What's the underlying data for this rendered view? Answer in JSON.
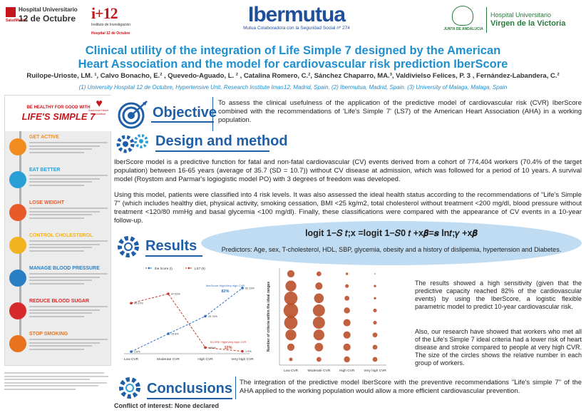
{
  "header": {
    "left_logo_1_line1": "Hospital Universitario",
    "left_logo_1_line2": "12 de Octubre",
    "left_logo_1_sub": "SaludMadrid",
    "left_logo_2_mark": "i+12",
    "left_logo_2_line1": "Instituto de Investigación",
    "left_logo_2_line2": "Hospital 12 de Octubre",
    "center_logo_name": "Ibermutua",
    "center_logo_sub": "Mutua Colaboradora con la Seguridad Social nº 274",
    "right_logo_junta": "JUNTA DE ANDALUCIA",
    "right_logo_line1": "Hospital Universitario",
    "right_logo_line2": "Virgen de la Victoria"
  },
  "poster": {
    "title_line1": "Clinical utility of the integration of Life Simple 7 designed by the American",
    "title_line2": "Heart Association and the model for cardiovascular risk prediction IberScore",
    "authors": "Ruilope-Urioste, LM. ¹, Calvo Bonacho, E.² , Quevedo-Aguado, L. ² , Catalina Romero, C.², Sánchez Chaparro, MA.³, Valdivielso Felices, P. 3 , Fernández-Labandera, C.²",
    "affiliations": "(1) University Hospital 12 de Octubre, Hypertensive Unit, Research Institute Imas12, Madrid, Spain. (2) Ibermutua, Madrid, Spain.  (3) University of Malaga, Malaga, Spain"
  },
  "infographic": {
    "be_healthy": "BE HEALTHY FOR GOOD WITH",
    "title": "LIFE'S SIMPLE 7",
    "aha": "American Heart Association",
    "items": [
      {
        "label": "GET ACTIVE",
        "color": "#f28c1f"
      },
      {
        "label": "EAT BETTER",
        "color": "#2a9fd6"
      },
      {
        "label": "LOSE WEIGHT",
        "color": "#e85a2a"
      },
      {
        "label": "CONTROL CHOLESTEROL",
        "color": "#f2b31f"
      },
      {
        "label": "MANAGE BLOOD PRESSURE",
        "color": "#2a7fc4"
      },
      {
        "label": "REDUCE BLOOD SUGAR",
        "color": "#d62a2a"
      },
      {
        "label": "STOP SMOKING",
        "color": "#e8731f"
      }
    ]
  },
  "objective": {
    "title": "Objective",
    "text": "To assess the clinical usefulness of the application of the predictive model of cardiovascular risk (CVR) IberScore  combined with the recommendations of 'Life's Simple 7' (LS7) of the American Heart Association (AHA) in a working  population."
  },
  "design": {
    "title": "Design and method",
    "para1": "IberScore model is a predictive function for fatal and non-fatal cardiovascular (CV) events derived from a cohort of 774,404 workers (70.4% of the target population) between 16-65 years (average of 35.7 (SD = 10.7)) without CV disease at admission, which was followed for a period of 10 years. A survival model (Roystom and Parmar's logiogistic model PO) with 3 degrees of freedom was developed.",
    "para2": "Using this model, patients were classified into 4 risk levels. It was also assessed the ideal health status according to the recommendations of \"Life's Simple 7\" (which includes healthy diet, physical activity, smoking cessation, BMI <25 kg/m2, total cholesterol without treatment <200 mg/dl, blood pressure without treatment <120/80 mmHg and basal glycemia <100 mg/dl). Finally, these classifications were compared with the appearance of CV events in a 10-year follow-up."
  },
  "results": {
    "title": "Results",
    "formula": "logit 1−𝑆 𝑡;x =logit 1−𝑆0 𝑡 +x𝜷=𝒔 ln𝑡;𝛾 +x𝜷",
    "predictors": "Predictors: Age, sex, T-cholesterol, HDL, SBP, glycemia, obesity and a history of dislipemia, hypertension and Diabetes.",
    "text1": "The results showed a high sensitivity (given that the predictive capacity reached 82% of the cardiovascular events) by using the IberScore, a logistic flexible parametric model to predict 10-year cardiovascular risk.",
    "text2": "Also, our research have showed that workers who met all of the Life's Simple 7 ideal criteria had a  lower risk of heart disease and stroke compared to people at very high CVR. The size of the circles shows the  relative number in each group of workers."
  },
  "chart_data": [
    {
      "type": "line",
      "categories": [
        "Low CVR",
        "Moderate CVR",
        "High CVR",
        "Very high CVR"
      ],
      "series": [
        {
          "name": "Ibe Score (I)",
          "values": [
            1.6,
            15.8,
            29.74,
            52.13
          ],
          "labels": [
            "1.6%",
            "15.8%",
            "29.74%",
            "52.13%"
          ],
          "color": "#2f6fc0"
        },
        {
          "name": "LS7 (II)",
          "values": [
            40.07,
            47.52,
            4.84,
            1.9
          ],
          "labels": [
            "40.07%",
            "47.52%",
            "4.84%",
            "1.9%"
          ],
          "color": "#c0392b"
        }
      ],
      "annotations": [
        {
          "text": "IberScore High/Very high CVR",
          "value": "82%"
        },
        {
          "text": "SCORE High/Very high CVR",
          "value": "12%"
        }
      ],
      "ylim": [
        0,
        60
      ]
    },
    {
      "type": "scatter",
      "title": "",
      "ylabel": "Number of criteria within the ideal ranges",
      "categories": [
        "Low CVR",
        "Moderate CVR",
        "High CVR",
        "Very high CVR"
      ],
      "y_levels": [
        0,
        1,
        2,
        3,
        4,
        5,
        6,
        7
      ],
      "sizes": [
        [
          3,
          6,
          9,
          11,
          12,
          11,
          9,
          6
        ],
        [
          4,
          7,
          9,
          10,
          10,
          8,
          6,
          4
        ],
        [
          5,
          6,
          6,
          6,
          5,
          4,
          3,
          2
        ],
        [
          4,
          4,
          4,
          3,
          3,
          2,
          2,
          1
        ]
      ],
      "color": "#b5451f"
    }
  ],
  "conclusions": {
    "title": "Conclusions",
    "text": "The integration of the predictive model IberScore with the preventive recommendations \"Life's simple 7\" of the AHA applied to the working population would allow a more  efficient cardiovascular prevention.",
    "conflict": "Conflict of interest: None declared"
  }
}
